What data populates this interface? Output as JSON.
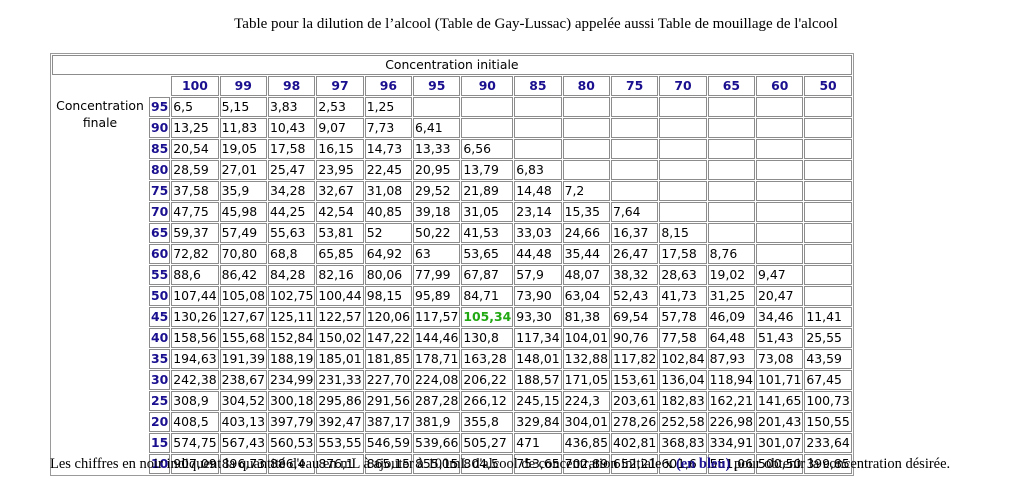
{
  "title": "Table pour la dilution de l’alcool (Table de Gay-Lussac) appelée aussi Table de mouillage de l'alcool",
  "table": {
    "header_initial": "Concentration initiale",
    "header_final": "Concentration finale",
    "initial_concentrations": [
      "100",
      "99",
      "98",
      "97",
      "96",
      "95",
      "90",
      "85",
      "80",
      "75",
      "70",
      "65",
      "60",
      "50"
    ],
    "rows": [
      {
        "final": "95",
        "values": [
          "6,5",
          "5,15",
          "3,83",
          "2,53",
          "1,25",
          "",
          "",
          "",
          "",
          "",
          "",
          "",
          "",
          ""
        ]
      },
      {
        "final": "90",
        "values": [
          "13,25",
          "11,83",
          "10,43",
          "9,07",
          "7,73",
          "6,41",
          "",
          "",
          "",
          "",
          "",
          "",
          "",
          ""
        ]
      },
      {
        "final": "85",
        "values": [
          "20,54",
          "19,05",
          "17,58",
          "16,15",
          "14,73",
          "13,33",
          "6,56",
          "",
          "",
          "",
          "",
          "",
          "",
          ""
        ]
      },
      {
        "final": "80",
        "values": [
          "28,59",
          "27,01",
          "25,47",
          "23,95",
          "22,45",
          "20,95",
          "13,79",
          "6,83",
          "",
          "",
          "",
          "",
          "",
          ""
        ]
      },
      {
        "final": "75",
        "values": [
          "37,58",
          "35,9",
          "34,28",
          "32,67",
          "31,08",
          "29,52",
          "21,89",
          "14,48",
          "7,2",
          "",
          "",
          "",
          "",
          ""
        ]
      },
      {
        "final": "70",
        "values": [
          "47,75",
          "45,98",
          "44,25",
          "42,54",
          "40,85",
          "39,18",
          "31,05",
          "23,14",
          "15,35",
          "7,64",
          "",
          "",
          "",
          ""
        ]
      },
      {
        "final": "65",
        "values": [
          "59,37",
          "57,49",
          "55,63",
          "53,81",
          "52",
          "50,22",
          "41,53",
          "33,03",
          "24,66",
          "16,37",
          "8,15",
          "",
          "",
          ""
        ]
      },
      {
        "final": "60",
        "values": [
          "72,82",
          "70,80",
          "68,8",
          "65,85",
          "64,92",
          "63",
          "53,65",
          "44,48",
          "35,44",
          "26,47",
          "17,58",
          "8,76",
          "",
          ""
        ]
      },
      {
        "final": "55",
        "values": [
          "88,6",
          "86,42",
          "84,28",
          "82,16",
          "80,06",
          "77,99",
          "67,87",
          "57,9",
          "48,07",
          "38,32",
          "28,63",
          "19,02",
          "9,47",
          ""
        ]
      },
      {
        "final": "50",
        "values": [
          "107,44",
          "105,08",
          "102,75",
          "100,44",
          "98,15",
          "95,89",
          "84,71",
          "73,90",
          "63,04",
          "52,43",
          "41,73",
          "31,25",
          "20,47",
          ""
        ]
      },
      {
        "final": "45",
        "values": [
          "130,26",
          "127,67",
          "125,11",
          "122,57",
          "120,06",
          "117,57",
          "105,34",
          "93,30",
          "81,38",
          "69,54",
          "57,78",
          "46,09",
          "34,46",
          "11,41"
        ]
      },
      {
        "final": "40",
        "values": [
          "158,56",
          "155,68",
          "152,84",
          "150,02",
          "147,22",
          "144,46",
          "130,8",
          "117,34",
          "104,01",
          "90,76",
          "77,58",
          "64,48",
          "51,43",
          "25,55"
        ]
      },
      {
        "final": "35",
        "values": [
          "194,63",
          "191,39",
          "188,19",
          "185,01",
          "181,85",
          "178,71",
          "163,28",
          "148,01",
          "132,88",
          "117,82",
          "102,84",
          "87,93",
          "73,08",
          "43,59"
        ]
      },
      {
        "final": "30",
        "values": [
          "242,38",
          "238,67",
          "234,99",
          "231,33",
          "227,70",
          "224,08",
          "206,22",
          "188,57",
          "171,05",
          "153,61",
          "136,04",
          "118,94",
          "101,71",
          "67,45"
        ]
      },
      {
        "final": "25",
        "values": [
          "308,9",
          "304,52",
          "300,18",
          "295,86",
          "291,56",
          "287,28",
          "266,12",
          "245,15",
          "224,3",
          "203,61",
          "182,83",
          "162,21",
          "141,65",
          "100,73"
        ]
      },
      {
        "final": "20",
        "values": [
          "408,5",
          "403,13",
          "397,79",
          "392,47",
          "387,17",
          "381,9",
          "355,8",
          "329,84",
          "304,01",
          "278,26",
          "252,58",
          "226,98",
          "201,43",
          "150,55"
        ]
      },
      {
        "final": "15",
        "values": [
          "574,75",
          "567,43",
          "560,53",
          "553,55",
          "546,59",
          "539,66",
          "505,27",
          "471",
          "436,85",
          "402,81",
          "368,83",
          "334,91",
          "301,07",
          "233,64"
        ]
      },
      {
        "final": "10",
        "values": [
          "907,09",
          "896,73",
          "886,4",
          "876,1",
          "865,15",
          "855,15",
          "804,5",
          "753,65",
          "702,89",
          "652,21",
          "601,6",
          "551,06",
          "500,50",
          "399,85"
        ]
      }
    ],
    "highlight": {
      "row": 10,
      "col": 6,
      "color": "#22a813"
    }
  },
  "note": {
    "before": "Les chiffres en noir indiquent la quantité d'eau en mL à ajouter à 100mL d'alcool de concentration initiale x ",
    "blue": "(en bleu)",
    "after": " pour obtenir la concentration désirée."
  },
  "colors": {
    "header_blue": "#1a0f8f",
    "highlight_green": "#22a813",
    "border": "#8c8c8c"
  }
}
